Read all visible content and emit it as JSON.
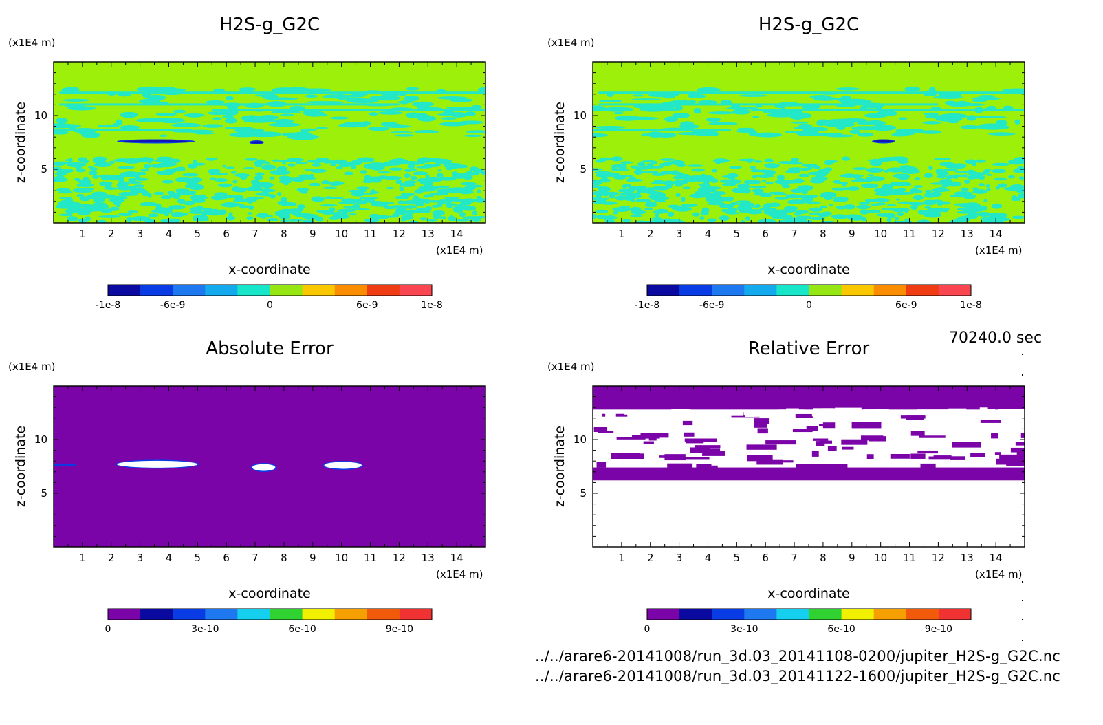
{
  "colors": {
    "diverging": [
      "#0a0aa0",
      "#0a3ce6",
      "#1e78f0",
      "#14aaee",
      "#18e6c8",
      "#96e614",
      "#fac800",
      "#fa8c00",
      "#f03c14",
      "#fa4650"
    ],
    "error": [
      "#7b04a8",
      "#0a0aa0",
      "#0a3ce6",
      "#1e78f0",
      "#14d0ee",
      "#30d232",
      "#f0f000",
      "#f5a000",
      "#f05a0a",
      "#f03232"
    ],
    "field_bg": "#9cf00a",
    "field_blob": "#22e8c8",
    "field_dark": "#1414b4",
    "abs_bg": "#7b04a8",
    "rel_bg": "#7b04a8"
  },
  "time_label": "70240.0 sec",
  "footer": {
    "line1": "../../arare6-20141008/run_3d.03_20141108-0200/jupiter_H2S-g_G2C.nc",
    "line2": "../../arare6-20141008/run_3d.03_20141122-1600/jupiter_H2S-g_G2C.nc"
  },
  "chart_data": [
    {
      "type": "heatmap",
      "title": "H2S-g_G2C",
      "xlabel": "x-coordinate",
      "ylabel": "z-coordinate",
      "x_unit": "(x1E4 m)",
      "y_unit": "(x1E4 m)",
      "xlim": [
        0,
        15
      ],
      "ylim": [
        0,
        15
      ],
      "x_ticks": [
        "1",
        "2",
        "3",
        "4",
        "5",
        "6",
        "7",
        "8",
        "9",
        "10",
        "11",
        "12",
        "13",
        "14"
      ],
      "y_ticks": [
        "5",
        "10"
      ],
      "colorbar": {
        "levels": [
          -1e-08,
          1e-08
        ],
        "tick_labels": [
          "-1e-8",
          "-6e-9",
          "0",
          "6e-9",
          "1e-8"
        ],
        "n_bins": 10
      },
      "features": {
        "noisy_band_z": [
          0,
          6
        ],
        "upper_band_z": [
          8,
          12.5
        ],
        "dark_streaks": [
          [
            2.2,
            4.9,
            7.6
          ],
          [
            6.8,
            7.3,
            7.5
          ]
        ]
      }
    },
    {
      "type": "heatmap",
      "title": "H2S-g_G2C",
      "xlabel": "x-coordinate",
      "ylabel": "z-coordinate",
      "x_unit": "(x1E4 m)",
      "y_unit": "(x1E4 m)",
      "xlim": [
        0,
        15
      ],
      "ylim": [
        0,
        15
      ],
      "x_ticks": [
        "1",
        "2",
        "3",
        "4",
        "5",
        "6",
        "7",
        "8",
        "9",
        "10",
        "11",
        "12",
        "13",
        "14"
      ],
      "y_ticks": [
        "5",
        "10"
      ],
      "colorbar": {
        "levels": [
          -1e-08,
          1e-08
        ],
        "tick_labels": [
          "-1e-8",
          "-6e-9",
          "0",
          "6e-9",
          "1e-8"
        ],
        "n_bins": 10
      },
      "features": {
        "noisy_band_z": [
          0,
          6
        ],
        "upper_band_z": [
          8,
          12.5
        ],
        "dark_streaks": [
          [
            9.7,
            10.5,
            7.6
          ]
        ]
      }
    },
    {
      "type": "heatmap",
      "title": "Absolute Error",
      "xlabel": "x-coordinate",
      "ylabel": "z-coordinate",
      "x_unit": "(x1E4 m)",
      "y_unit": "(x1E4 m)",
      "xlim": [
        0,
        15
      ],
      "ylim": [
        0,
        15
      ],
      "x_ticks": [
        "1",
        "2",
        "3",
        "4",
        "5",
        "6",
        "7",
        "8",
        "9",
        "10",
        "11",
        "12",
        "13",
        "14"
      ],
      "y_ticks": [
        "5",
        "10"
      ],
      "colorbar": {
        "levels": [
          0,
          1e-09
        ],
        "tick_labels": [
          "0",
          "3e-10",
          "6e-10",
          "9e-10"
        ],
        "n_bins": 10
      },
      "features": {
        "white_blobs": [
          [
            2.2,
            5.0,
            7.7
          ],
          [
            6.9,
            7.7,
            7.4
          ],
          [
            9.4,
            10.7,
            7.6
          ]
        ]
      }
    },
    {
      "type": "heatmap",
      "title": "Relative Error",
      "xlabel": "x-coordinate",
      "ylabel": "z-coordinate",
      "x_unit": "(x1E4 m)",
      "y_unit": "(x1E4 m)",
      "xlim": [
        0,
        15
      ],
      "ylim": [
        0,
        15
      ],
      "x_ticks": [
        "1",
        "2",
        "3",
        "4",
        "5",
        "6",
        "7",
        "8",
        "9",
        "10",
        "11",
        "12",
        "13",
        "14"
      ],
      "y_ticks": [
        "5",
        "10"
      ],
      "colorbar": {
        "levels": [
          0,
          1e-09
        ],
        "tick_labels": [
          "0",
          "3e-10",
          "6e-10",
          "9e-10"
        ],
        "n_bins": 10
      },
      "features": {
        "purple_top_band_z": [
          12.8,
          15
        ],
        "purple_mid_band_z": [
          6.2,
          7.4
        ]
      }
    }
  ]
}
